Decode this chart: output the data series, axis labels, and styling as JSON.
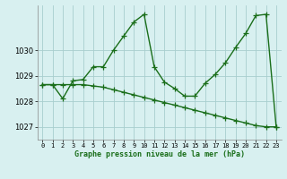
{
  "line1_x": [
    0,
    1,
    2,
    3,
    4,
    5,
    6,
    7,
    8,
    9,
    10,
    11,
    12,
    13,
    14,
    15,
    16,
    17,
    18,
    19,
    20,
    21,
    22,
    23
  ],
  "line1_y": [
    1028.65,
    1028.65,
    1028.1,
    1028.8,
    1028.85,
    1029.35,
    1029.35,
    1030.0,
    1030.55,
    1031.1,
    1031.4,
    1029.35,
    1028.75,
    1028.5,
    1028.2,
    1028.2,
    1028.7,
    1029.05,
    1029.5,
    1030.1,
    1030.65,
    1031.35,
    1031.4,
    1027.0
  ],
  "line2_x": [
    0,
    1,
    2,
    3,
    4,
    5,
    6,
    7,
    8,
    9,
    10,
    11,
    12,
    13,
    14,
    15,
    16,
    17,
    18,
    19,
    20,
    21,
    22,
    23
  ],
  "line2_y": [
    1028.65,
    1028.65,
    1028.65,
    1028.65,
    1028.65,
    1028.6,
    1028.55,
    1028.45,
    1028.35,
    1028.25,
    1028.15,
    1028.05,
    1027.95,
    1027.85,
    1027.75,
    1027.65,
    1027.55,
    1027.45,
    1027.35,
    1027.25,
    1027.15,
    1027.05,
    1027.0,
    1027.0
  ],
  "line_color": "#1a6e1a",
  "bg_color": "#d8f0f0",
  "grid_color": "#a8cece",
  "xlabel": "Graphe pression niveau de la mer (hPa)",
  "ylim": [
    1026.5,
    1031.75
  ],
  "xlim": [
    -0.5,
    23.5
  ],
  "yticks": [
    1027,
    1028,
    1029,
    1030
  ],
  "xticks": [
    0,
    1,
    2,
    3,
    4,
    5,
    6,
    7,
    8,
    9,
    10,
    11,
    12,
    13,
    14,
    15,
    16,
    17,
    18,
    19,
    20,
    21,
    22,
    23
  ],
  "marker": "+",
  "markersize": 4,
  "linewidth": 1.0
}
